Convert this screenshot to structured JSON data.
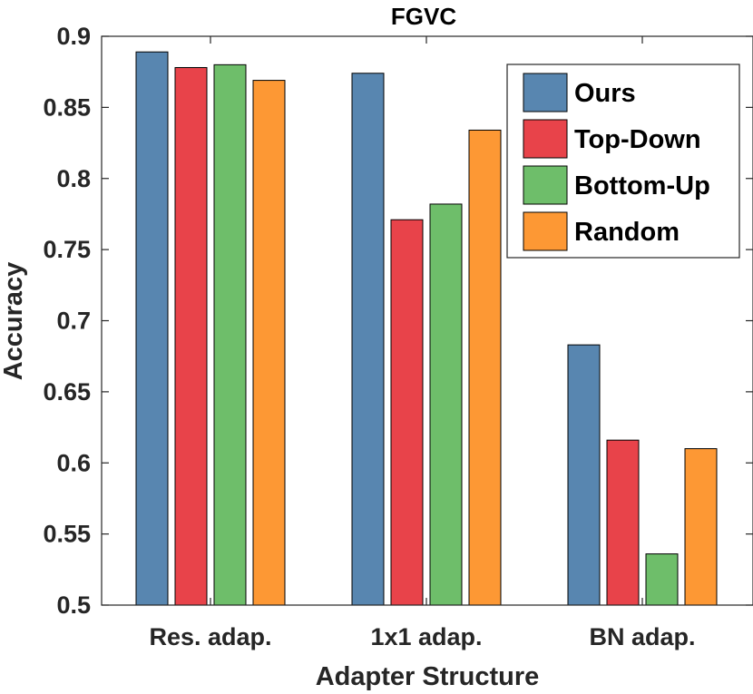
{
  "chart_data": {
    "type": "bar",
    "title": "FGVC",
    "xlabel": "Adapter Structure",
    "ylabel": "Accuracy",
    "ylim": [
      0.5,
      0.9
    ],
    "yticks": [
      0.5,
      0.55,
      0.6,
      0.65,
      0.7,
      0.75,
      0.8,
      0.85,
      0.9
    ],
    "ytick_labels": [
      "0.5",
      "0.55",
      "0.6",
      "0.65",
      "0.7",
      "0.75",
      "0.8",
      "0.85",
      "0.9"
    ],
    "categories": [
      "Res. adap.",
      "1x1 adap.",
      "BN adap."
    ],
    "series": [
      {
        "name": "Ours",
        "color": "#5886b0",
        "values": [
          0.889,
          0.874,
          0.683
        ]
      },
      {
        "name": "Top-Down",
        "color": "#e8434a",
        "values": [
          0.878,
          0.771,
          0.616
        ]
      },
      {
        "name": "Bottom-Up",
        "color": "#6ebe6a",
        "values": [
          0.88,
          0.782,
          0.536
        ]
      },
      {
        "name": "Random",
        "color": "#fd9834",
        "values": [
          0.869,
          0.834,
          0.61
        ]
      }
    ],
    "legend_position": "top-right",
    "grid": false
  }
}
